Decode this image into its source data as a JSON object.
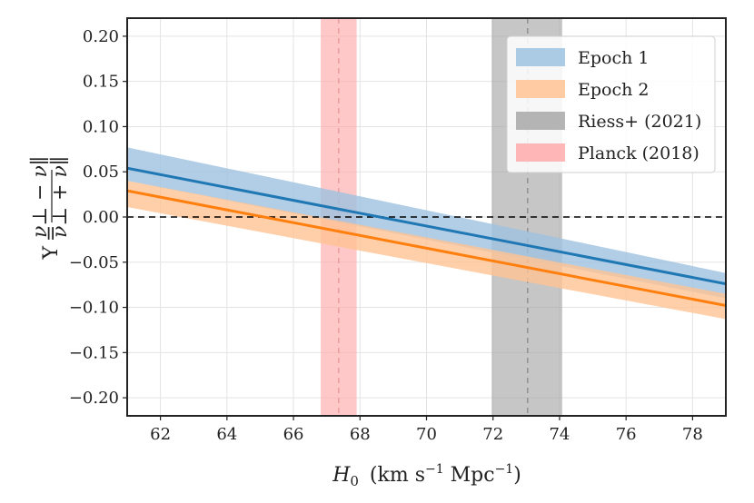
{
  "chart_data": {
    "type": "line",
    "xlabel": "H₀  (km s⁻¹ Mpc⁻¹)",
    "ylabel": "Υ = (ν⊥ − ν∥)/(ν⊥ + ν∥)",
    "ylabel_parts": {
      "symbol": "Υ",
      "eq": "=",
      "num": "ν⊥ − ν∥",
      "den": "ν⊥ + ν∥"
    },
    "xlabel_parts": {
      "main": "H",
      "sub": "0",
      "units_a": "(km s",
      "sup1": "−1",
      "units_b": " Mpc",
      "sup2": "−1",
      "units_c": ")"
    },
    "xlim": [
      61,
      79
    ],
    "ylim": [
      -0.22,
      0.22
    ],
    "xticks": [
      62,
      64,
      66,
      68,
      70,
      72,
      74,
      76,
      78
    ],
    "xtick_labels": [
      "62",
      "64",
      "66",
      "68",
      "70",
      "72",
      "74",
      "76",
      "78"
    ],
    "yticks": [
      -0.2,
      -0.15,
      -0.1,
      -0.05,
      0.0,
      0.05,
      0.1,
      0.15,
      0.2
    ],
    "ytick_labels": [
      "−0.20",
      "−0.15",
      "−0.10",
      "−0.05",
      "0.00",
      "0.05",
      "0.10",
      "0.15",
      "0.20"
    ],
    "grid": true,
    "legend_position": "top-right",
    "reference_line": {
      "y": 0.0,
      "style": "dashed",
      "color": "#000000"
    },
    "series": [
      {
        "name": "Epoch 1",
        "color": "#1f77b4",
        "fill": "#9ec2e0",
        "x": [
          61,
          79
        ],
        "y": [
          0.054,
          -0.074
        ],
        "band_upper": [
          0.077,
          -0.062
        ],
        "band_lower": [
          0.04,
          -0.09
        ]
      },
      {
        "name": "Epoch 2",
        "color": "#ff7f0e",
        "fill": "#ffc393",
        "x": [
          61,
          79
        ],
        "y": [
          0.029,
          -0.098
        ],
        "band_upper": [
          0.04,
          -0.085
        ],
        "band_lower": [
          0.011,
          -0.113
        ]
      }
    ],
    "vertical_bands": [
      {
        "name": "Riess+ (2021)",
        "center": 73.04,
        "min": 71.96,
        "max": 74.08,
        "fill": "#a8a8a8",
        "line_color": "#8c8c8c"
      },
      {
        "name": "Planck (2018)",
        "center": 67.36,
        "min": 66.82,
        "max": 67.9,
        "fill": "#ffaaaa",
        "line_color": "#e89a9a"
      }
    ],
    "legend": [
      "Epoch 1",
      "Epoch 2",
      "Riess+ (2021)",
      "Planck (2018)"
    ]
  }
}
